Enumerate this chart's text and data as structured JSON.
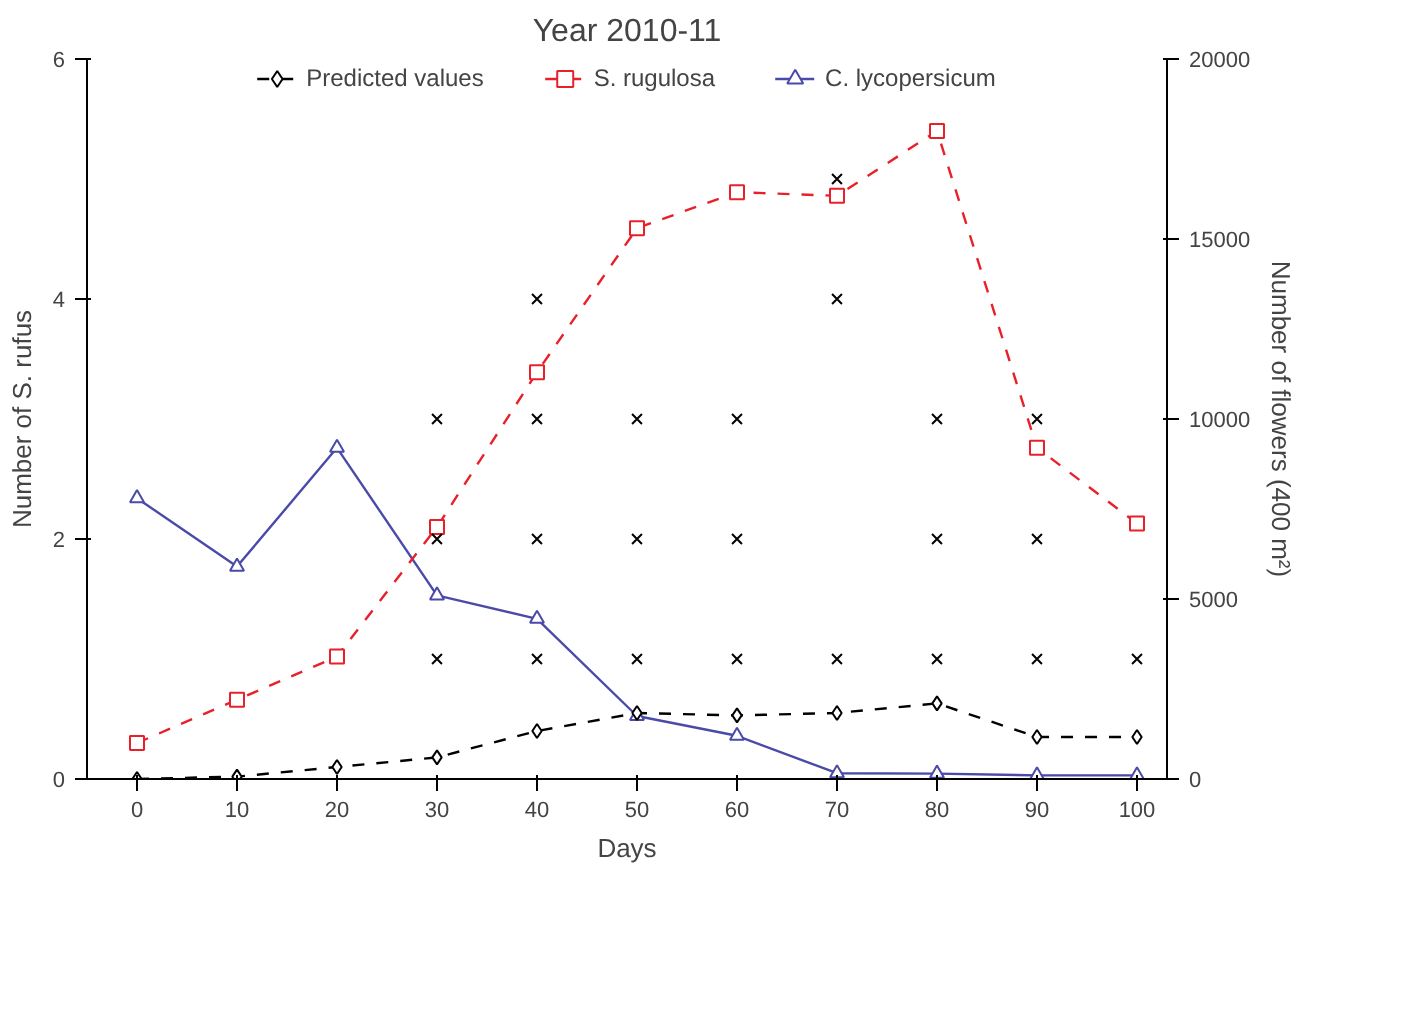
{
  "chart_data": {
    "type": "line",
    "title": "Year 2010-11",
    "xlabel": "Days",
    "ylabel": "Number of S. rufus",
    "y2label": "Number of flowers (400 m²)",
    "xlim": [
      -5,
      103
    ],
    "xticks": [
      0,
      10,
      20,
      30,
      40,
      50,
      60,
      70,
      80,
      90,
      100
    ],
    "ylim": [
      0,
      6
    ],
    "yticks": [
      0,
      2,
      4,
      6
    ],
    "y2lim": [
      0,
      20000
    ],
    "y2ticks": [
      0,
      5000,
      10000,
      15000,
      20000
    ],
    "grid": false,
    "legend": "top",
    "series": [
      {
        "name": "Predicted values",
        "color": "#000000",
        "marker": "diamond",
        "line_style": "dashed",
        "x": [
          0,
          10,
          20,
          30,
          40,
          50,
          60,
          70,
          80,
          90,
          100
        ],
        "values": [
          0,
          0.02,
          0.1,
          0.18,
          0.4,
          0.55,
          0.53,
          0.55,
          0.63,
          0.35,
          0.35
        ]
      },
      {
        "type": "scatter",
        "color": "#000000",
        "marker": "cross",
        "x": [
          30,
          30,
          30,
          40,
          40,
          40,
          40,
          50,
          50,
          50,
          60,
          60,
          60,
          70,
          70,
          70,
          80,
          80,
          80,
          90,
          90,
          90,
          100
        ],
        "values": [
          1,
          2,
          3,
          1,
          2,
          3,
          4,
          1,
          2,
          3,
          1,
          2,
          3,
          1,
          4,
          5,
          1,
          2,
          3,
          1,
          2,
          3,
          1
        ]
      },
      {
        "name": "S. rugulosa",
        "axis": "y2",
        "color": "#e8202a",
        "marker": "square",
        "line_style": "dashed",
        "x": [
          0,
          10,
          20,
          30,
          40,
          50,
          60,
          70,
          80,
          90,
          100
        ],
        "values": [
          1000,
          2200,
          3400,
          7000,
          11300,
          15300,
          16300,
          16200,
          18000,
          9200,
          7100
        ]
      },
      {
        "name": "C. lycopersicum",
        "axis": "y2",
        "color": "#4a4aa8",
        "marker": "triangle",
        "line_style": "solid",
        "x": [
          0,
          10,
          20,
          30,
          40,
          50,
          60,
          70,
          80,
          90,
          100
        ],
        "values": [
          7800,
          5900,
          9200,
          5100,
          4450,
          1750,
          1200,
          160,
          150,
          100,
          100
        ]
      }
    ]
  }
}
